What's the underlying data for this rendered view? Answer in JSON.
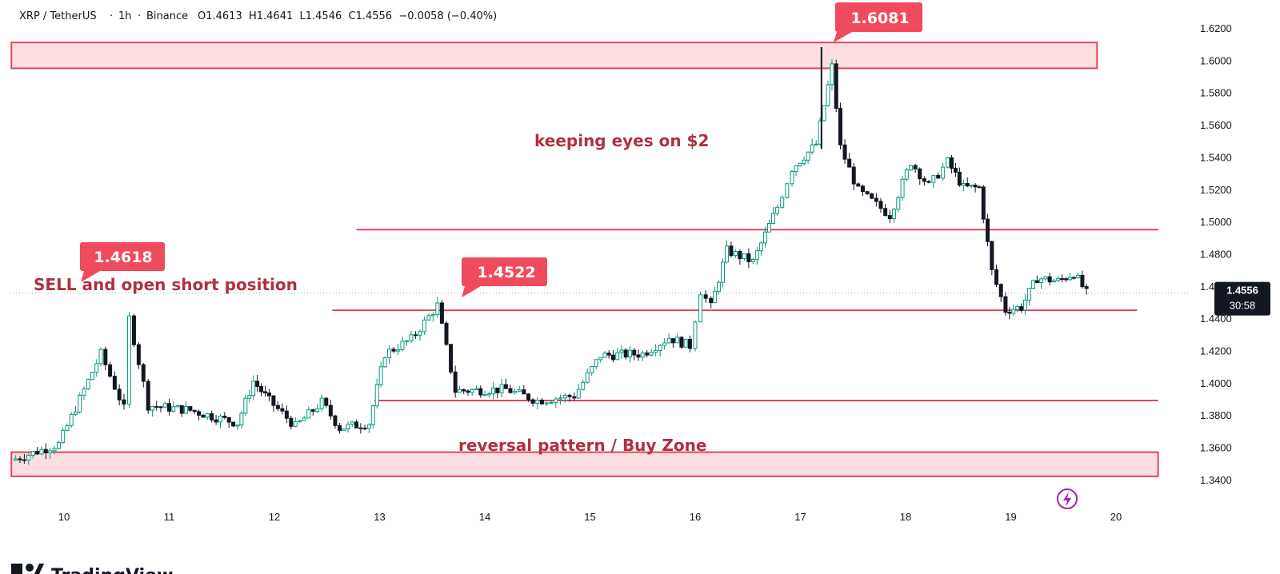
{
  "header": {
    "symbol": "XRP / TetherUS",
    "interval": "1h",
    "exchange": "Binance",
    "ohlc": "O1.4613  H1.4641  L1.4546  C1.4556  −0.0058 (−0.40%)"
  },
  "price_scale": {
    "current_price": "1.4556",
    "countdown": "30:58"
  },
  "annotations": {
    "callout_high": "1.6081",
    "callout_left": "1.4618",
    "callout_mid": "1.4522",
    "note_top": "keeping eyes on $2",
    "note_left": "SELL and open short position",
    "note_bottom": "reversal pattern / Buy Zone"
  },
  "branding": {
    "logo_text": "TradingView"
  },
  "colors": {
    "up": "#089981",
    "down": "#131722",
    "zone_fill": "#fcdde0",
    "zone_line": "#e0455c",
    "callout": "#f04a5d",
    "current_price_bg": "#131722",
    "quick_icon": "#9c27b0"
  },
  "chart_data": {
    "type": "candlestick",
    "symbol": "XRP / TetherUS",
    "interval": "1h",
    "ylim": [
      1.33,
      1.63
    ],
    "yticks": [
      "1.6200",
      "1.6000",
      "1.5800",
      "1.5600",
      "1.5400",
      "1.5200",
      "1.5000",
      "1.4800",
      "1.4600",
      "1.4400",
      "1.4200",
      "1.4000",
      "1.3800",
      "1.3600",
      "1.3400"
    ],
    "xticks": [
      "10",
      "11",
      "12",
      "13",
      "14",
      "15",
      "16",
      "17",
      "18",
      "19",
      "20"
    ],
    "xlim": [
      9.5,
      20.4
    ],
    "zones": [
      {
        "low": 1.595,
        "high": 1.611,
        "x_start": 9.5,
        "x_end": 19.82
      },
      {
        "low": 1.342,
        "high": 1.357,
        "x_start": 9.5,
        "x_end": 20.4
      }
    ],
    "levels": [
      {
        "price": 1.495,
        "x_start": 12.78,
        "x_end": 20.4
      },
      {
        "price": 1.445,
        "x_start": 12.55,
        "x_end": 20.2
      },
      {
        "price": 1.389,
        "x_start": 12.95,
        "x_end": 20.4
      }
    ],
    "anchors": [
      {
        "value": 1.4618,
        "x": 10.27
      },
      {
        "value": 1.4522,
        "x": 14.06
      },
      {
        "value": 1.6081,
        "x": 17.2
      }
    ],
    "key_points": [
      {
        "x": 9.5,
        "price": 1.352
      },
      {
        "x": 9.95,
        "price": 1.362
      },
      {
        "x": 10.35,
        "price": 1.418
      },
      {
        "x": 10.57,
        "price": 1.384
      },
      {
        "x": 10.62,
        "price": 1.44
      },
      {
        "x": 10.8,
        "price": 1.386
      },
      {
        "x": 11.2,
        "price": 1.383
      },
      {
        "x": 11.65,
        "price": 1.375
      },
      {
        "x": 11.8,
        "price": 1.401
      },
      {
        "x": 11.95,
        "price": 1.389
      },
      {
        "x": 12.2,
        "price": 1.373
      },
      {
        "x": 12.45,
        "price": 1.388
      },
      {
        "x": 12.62,
        "price": 1.372
      },
      {
        "x": 12.9,
        "price": 1.375
      },
      {
        "x": 13.05,
        "price": 1.418
      },
      {
        "x": 13.3,
        "price": 1.427
      },
      {
        "x": 13.55,
        "price": 1.448
      },
      {
        "x": 13.72,
        "price": 1.395
      },
      {
        "x": 14.2,
        "price": 1.396
      },
      {
        "x": 14.5,
        "price": 1.389
      },
      {
        "x": 14.85,
        "price": 1.392
      },
      {
        "x": 15.1,
        "price": 1.417
      },
      {
        "x": 15.5,
        "price": 1.418
      },
      {
        "x": 15.75,
        "price": 1.428
      },
      {
        "x": 15.95,
        "price": 1.423
      },
      {
        "x": 16.05,
        "price": 1.457
      },
      {
        "x": 16.15,
        "price": 1.447
      },
      {
        "x": 16.3,
        "price": 1.482
      },
      {
        "x": 16.55,
        "price": 1.475
      },
      {
        "x": 16.78,
        "price": 1.509
      },
      {
        "x": 16.92,
        "price": 1.533
      },
      {
        "x": 17.15,
        "price": 1.548
      },
      {
        "x": 17.3,
        "price": 1.596
      },
      {
        "x": 17.38,
        "price": 1.546
      },
      {
        "x": 17.55,
        "price": 1.519
      },
      {
        "x": 17.85,
        "price": 1.504
      },
      {
        "x": 18.05,
        "price": 1.537
      },
      {
        "x": 18.22,
        "price": 1.522
      },
      {
        "x": 18.4,
        "price": 1.537
      },
      {
        "x": 18.55,
        "price": 1.521
      },
      {
        "x": 18.7,
        "price": 1.521
      },
      {
        "x": 18.82,
        "price": 1.469
      },
      {
        "x": 18.95,
        "price": 1.445
      },
      {
        "x": 19.1,
        "price": 1.447
      },
      {
        "x": 19.25,
        "price": 1.465
      },
      {
        "x": 19.45,
        "price": 1.463
      },
      {
        "x": 19.6,
        "price": 1.468
      },
      {
        "x": 19.72,
        "price": 1.4556
      }
    ]
  }
}
